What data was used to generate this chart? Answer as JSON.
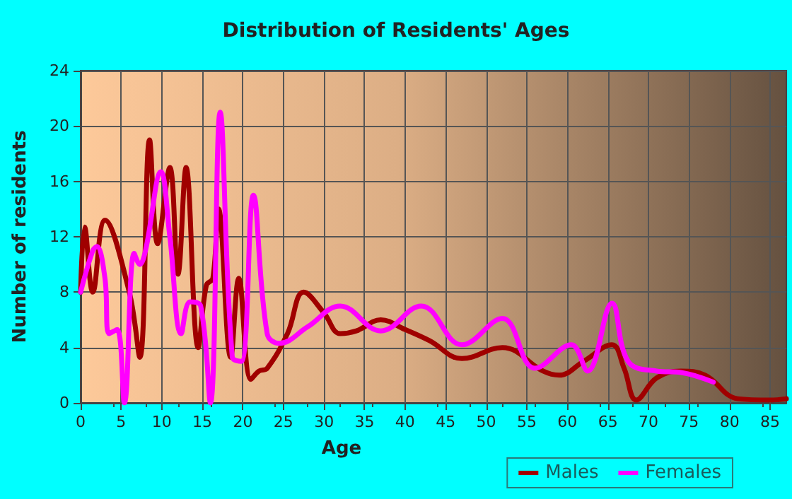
{
  "chart_data": {
    "type": "line",
    "title": "Distribution of Residents' Ages",
    "xlabel": "Age",
    "ylabel": "Number of residents",
    "xlim": [
      0,
      87
    ],
    "xticks": [
      0,
      5,
      10,
      15,
      20,
      25,
      30,
      35,
      40,
      45,
      50,
      55,
      60,
      65,
      70,
      75,
      80,
      85
    ],
    "ylim": [
      0,
      24
    ],
    "yticks": [
      0,
      4,
      8,
      12,
      16,
      20,
      24
    ],
    "grid": true,
    "legend": "bottom right",
    "marker": "none",
    "line_style": "solid",
    "series": [
      {
        "name": "Males",
        "color": "#a00000",
        "x": [
          0,
          0.5,
          1.5,
          3,
          6,
          7.3,
          8.5,
          9.5,
          11,
          12,
          13,
          14.5,
          15.5,
          16.3,
          17,
          18.5,
          19.5,
          21,
          22,
          23,
          25.5,
          27.5,
          30,
          32,
          34,
          37,
          40,
          43,
          47,
          52,
          57,
          59,
          62,
          65.5,
          67,
          68.5,
          71,
          74,
          77,
          81,
          85,
          87
        ],
        "values": [
          8,
          12.7,
          8,
          13.2,
          8,
          3.3,
          19,
          11.5,
          17,
          9.3,
          17,
          4,
          8.5,
          9,
          14,
          3.3,
          9,
          1.7,
          2.3,
          2.5,
          5,
          8,
          6.5,
          5,
          5.2,
          6,
          5.3,
          4.5,
          3.2,
          4,
          2.3,
          2,
          3,
          4.2,
          2.5,
          0.2,
          1.8,
          2.3,
          2,
          0.3,
          0.2,
          0.3
        ]
      },
      {
        "name": "Females",
        "color": "#ff00ff",
        "x": [
          0,
          1.5,
          2,
          3,
          3.5,
          4.5,
          5.4,
          6.6,
          7.3,
          8,
          9.9,
          11,
          12.4,
          13.5,
          14.8,
          16,
          17.2,
          18.7,
          19.8,
          21.3,
          23,
          24.5,
          28,
          32,
          37,
          42,
          47,
          52,
          56,
          60.5,
          62.5,
          65.5,
          67.5,
          71,
          74,
          78
        ],
        "values": [
          8,
          11,
          11.3,
          9,
          5,
          5.3,
          0,
          10.8,
          10,
          11,
          16.7,
          12,
          5,
          7.3,
          7,
          0,
          21,
          3.3,
          3,
          15,
          5,
          4.3,
          5.5,
          7,
          5.2,
          7,
          4.2,
          6.1,
          2.5,
          4.2,
          2.3,
          7.2,
          3,
          2.3,
          2.2,
          1.5
        ]
      }
    ]
  }
}
